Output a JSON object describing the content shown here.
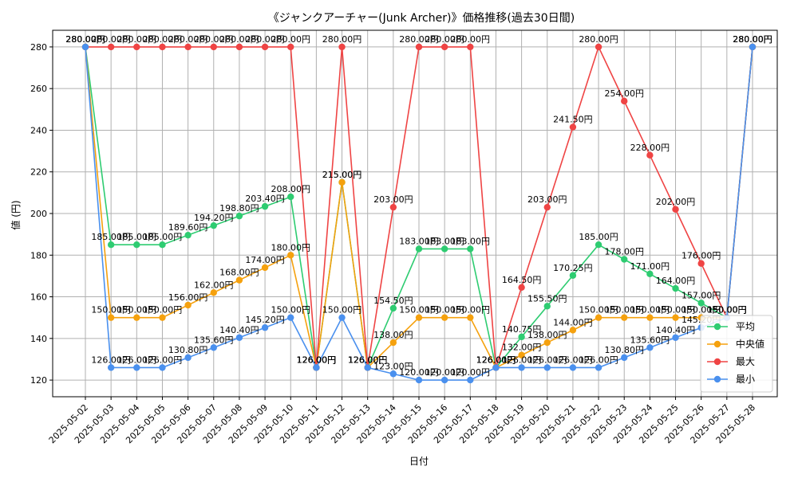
{
  "chart_data": {
    "type": "line",
    "title": "《ジャンクアーチャー(Junk Archer)》価格推移(過去30日間)",
    "xlabel": "日付",
    "ylabel": "値 (円)",
    "ylim": [
      112,
      288
    ],
    "yticks": [
      120,
      140,
      160,
      180,
      200,
      220,
      240,
      260,
      280
    ],
    "grid": true,
    "legend_position": "lower-right",
    "label_suffix": "円",
    "categories": [
      "2025-05-02",
      "2025-05-03",
      "2025-05-04",
      "2025-05-05",
      "2025-05-06",
      "2025-05-07",
      "2025-05-08",
      "2025-05-09",
      "2025-05-10",
      "2025-05-11",
      "2025-05-12",
      "2025-05-13",
      "2025-05-14",
      "2025-05-15",
      "2025-05-16",
      "2025-05-17",
      "2025-05-18",
      "2025-05-19",
      "2025-05-20",
      "2025-05-21",
      "2025-05-22",
      "2025-05-23",
      "2025-05-24",
      "2025-05-25",
      "2025-05-26",
      "2025-05-27",
      "2025-05-28"
    ],
    "series": [
      {
        "name": "平均",
        "color": "#2ecc71",
        "values": [
          280,
          185,
          185,
          185,
          189.6,
          194.2,
          198.8,
          203.4,
          208,
          126,
          215,
          126,
          154.5,
          183,
          183,
          183,
          126,
          140.75,
          155.5,
          170.25,
          185,
          178,
          171,
          164,
          157,
          150,
          280
        ]
      },
      {
        "name": "中央値",
        "color": "#f5a10e",
        "values": [
          280,
          150,
          150,
          150,
          156,
          162,
          168,
          174,
          180,
          126,
          215,
          126,
          138,
          150,
          150,
          150,
          126,
          132,
          138,
          144,
          150,
          150,
          150,
          150,
          150,
          150,
          280
        ]
      },
      {
        "name": "最大",
        "color": "#ef4444",
        "values": [
          280,
          280,
          280,
          280,
          280,
          280,
          280,
          280,
          280,
          126,
          280,
          126,
          203,
          280,
          280,
          280,
          126,
          164.5,
          203,
          241.5,
          280,
          254,
          228,
          202,
          176,
          150,
          280
        ]
      },
      {
        "name": "最小",
        "color": "#4a90ee",
        "values": [
          280,
          126,
          126,
          126,
          130.8,
          135.6,
          140.4,
          145.2,
          150,
          126,
          150,
          126,
          123,
          120,
          120,
          120,
          126,
          126,
          126,
          126,
          126,
          130.8,
          135.6,
          140.4,
          145.2,
          150,
          280
        ]
      }
    ]
  }
}
